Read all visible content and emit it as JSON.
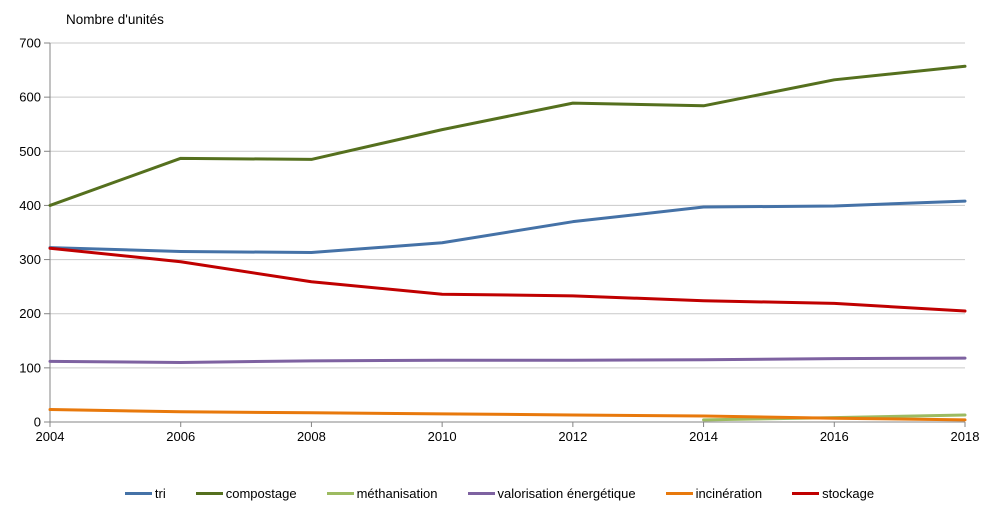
{
  "chart_data": {
    "type": "line",
    "title": "Nombre d'unités",
    "xlabel": "",
    "ylabel": "Nombre d'unités",
    "categories": [
      2004,
      2006,
      2008,
      2010,
      2012,
      2014,
      2016,
      2018
    ],
    "ylim": [
      0,
      700
    ],
    "ytick_step": 100,
    "grid": "horizontal",
    "legend_position": "bottom",
    "axis_color": "#848484",
    "grid_color": "#c9c9c9",
    "series": [
      {
        "name": "tri",
        "color": "#4572A7",
        "values": [
          322,
          315,
          313,
          331,
          370,
          397,
          399,
          408
        ]
      },
      {
        "name": "compostage",
        "color": "#55701E",
        "values": [
          400,
          487,
          485,
          540,
          589,
          584,
          632,
          657
        ]
      },
      {
        "name": "méthanisation",
        "color": "#9DBB61",
        "values": [
          null,
          null,
          null,
          null,
          null,
          4,
          8,
          13
        ]
      },
      {
        "name": "valorisation énergétique",
        "color": "#7E62A1",
        "values": [
          112,
          110,
          113,
          114,
          114,
          115,
          117,
          118
        ]
      },
      {
        "name": "incinération",
        "color": "#E8790C",
        "values": [
          23,
          19,
          17,
          15,
          13,
          11,
          7,
          4
        ]
      },
      {
        "name": "stockage",
        "color": "#C00000",
        "values": [
          321,
          296,
          259,
          236,
          233,
          224,
          219,
          205
        ]
      }
    ]
  }
}
